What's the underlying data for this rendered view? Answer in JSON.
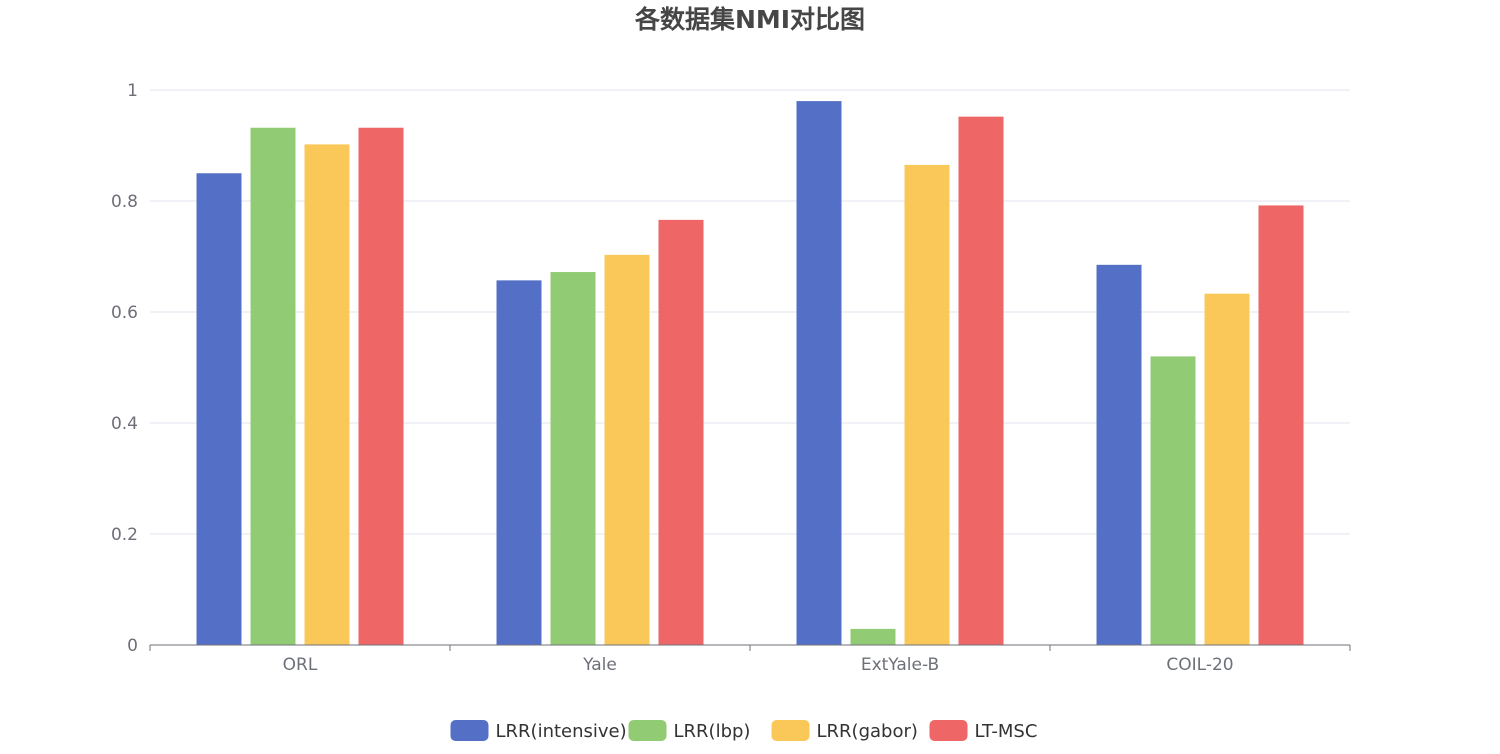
{
  "chart_data": {
    "type": "bar",
    "title": "各数据集NMI对比图",
    "categories": [
      "ORL",
      "Yale",
      "ExtYale-B",
      "COIL-20"
    ],
    "series": [
      {
        "name": "LRR(intensive)",
        "color": "#5470c6",
        "values": [
          0.85,
          0.657,
          0.98,
          0.685
        ]
      },
      {
        "name": "LRR(lbp)",
        "color": "#91cc75",
        "values": [
          0.932,
          0.672,
          0.029,
          0.52
        ]
      },
      {
        "name": "LRR(gabor)",
        "color": "#fac858",
        "values": [
          0.902,
          0.703,
          0.865,
          0.633
        ]
      },
      {
        "name": "LT-MSC",
        "color": "#ee6666",
        "values": [
          0.932,
          0.766,
          0.952,
          0.792
        ]
      }
    ],
    "ylim": [
      0,
      1
    ],
    "yticks": [
      "0",
      "0.2",
      "0.4",
      "0.6",
      "0.8",
      "1"
    ],
    "ytick_values": [
      0,
      0.2,
      0.4,
      0.6,
      0.8,
      1
    ],
    "grid": true,
    "legend_position": "bottom-center"
  }
}
